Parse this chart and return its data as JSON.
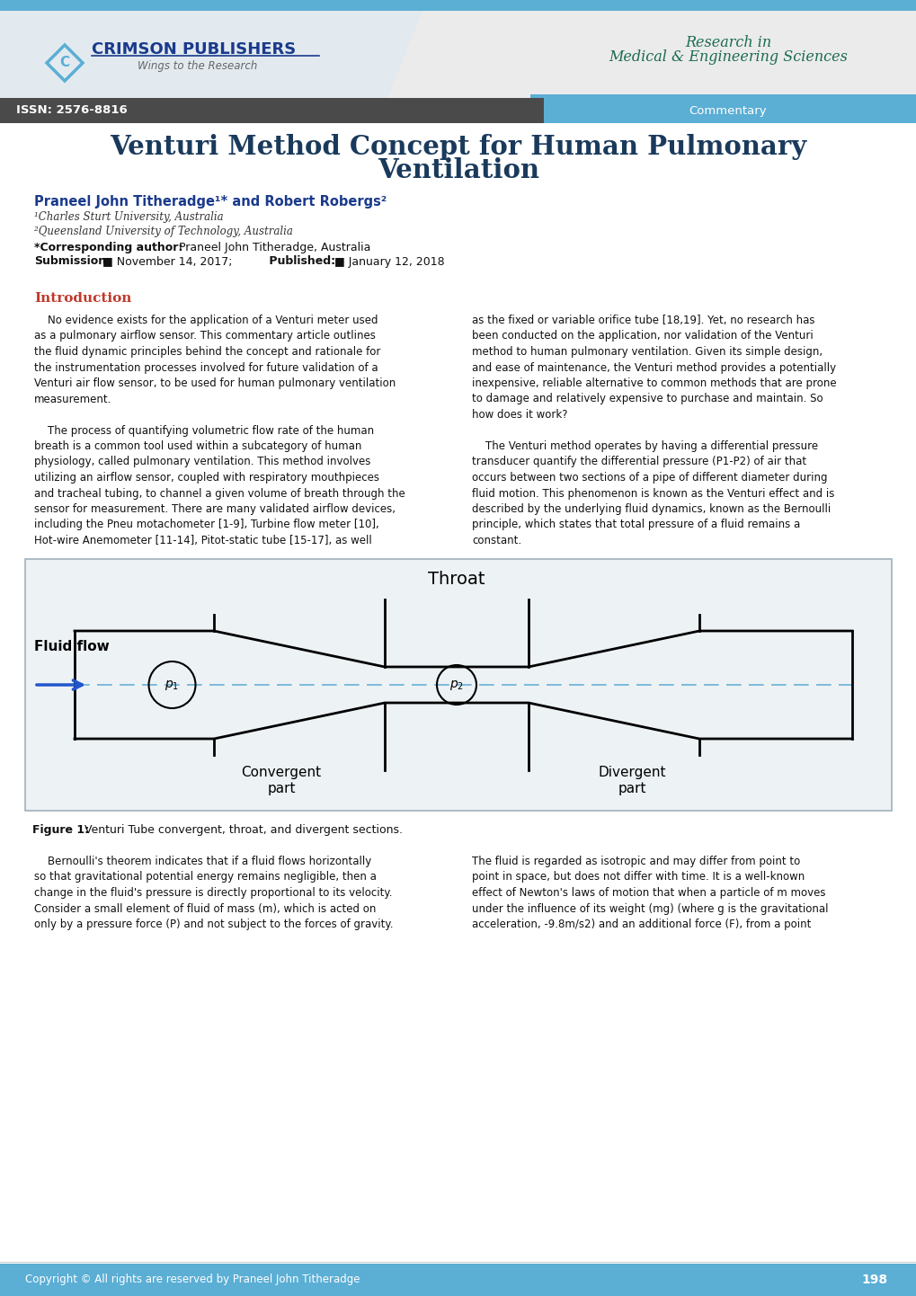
{
  "title_line1": "Venturi Method Concept for Human Pulmonary",
  "title_line2": "Ventilation",
  "title_color": "#1a3a5c",
  "header_bar_color": "#5baed4",
  "header_dark_bar": "#4a4a4a",
  "issn": "ISSN: 2576-8816",
  "commentary": "Commentary",
  "journal_line1": "Research in",
  "journal_line2": "Medical & Engineering Sciences",
  "journal_color": "#1a6b50",
  "crimson_text": "CRIMSON PUBLISHERS",
  "crimson_color": "#1a3a8c",
  "wings_text": "Wings to the Research",
  "authors": "Praneel John Titheradge¹* and Robert Robergs²",
  "authors_color": "#1a3a8c",
  "affil1": "¹Charles Sturt University, Australia",
  "affil2": "²Queensland University of Technology, Australia",
  "intro_title": "Introduction",
  "intro_color": "#c0392b",
  "figure_caption_bold": "Figure 1:",
  "figure_caption_rest": " Venturi Tube convergent, throat, and divergent sections.",
  "footer_text": "Copyright © All rights are reserved by Praneel John Titheradge",
  "page_number": "198",
  "bg_color": "#ffffff",
  "figure_bg": "#edf2f5",
  "figure_border": "#a0b0bb"
}
